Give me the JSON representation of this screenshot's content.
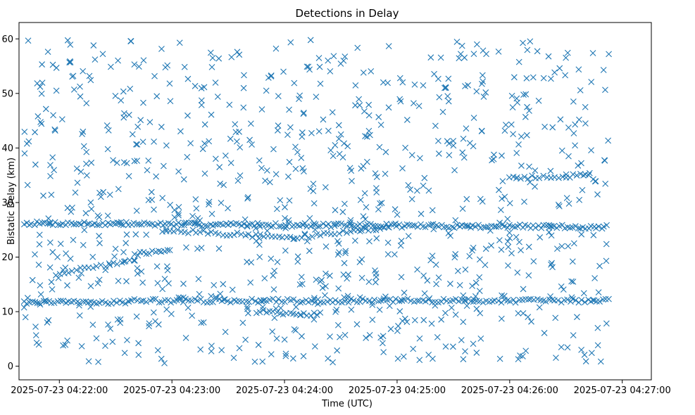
{
  "chart_data": {
    "type": "scatter",
    "title": "Detections in Delay",
    "xlabel": "Time (UTC)",
    "ylabel": "Bistatic Delay (km)",
    "marker": "x",
    "color": "#1f77b4",
    "grid": false,
    "x_ticks": [
      {
        "t": 0,
        "label": "2025-07-23 04:22:00"
      },
      {
        "t": 60,
        "label": "2025-07-23 04:23:00"
      },
      {
        "t": 120,
        "label": "2025-07-23 04:24:00"
      },
      {
        "t": 180,
        "label": "2025-07-23 04:25:00"
      },
      {
        "t": 240,
        "label": "2025-07-23 04:26:00"
      },
      {
        "t": 300,
        "label": "2025-07-23 04:27:00"
      }
    ],
    "y_ticks": [
      0,
      10,
      20,
      30,
      40,
      50,
      60
    ],
    "xlim": [
      -21.5,
      315.5
    ],
    "ylim": [
      -2.5,
      63
    ],
    "tracks": [
      {
        "t_start": -19,
        "t_end": 293,
        "y_start": 26.2,
        "y_end": 25.5,
        "step": 1.4
      },
      {
        "t_start": -19,
        "t_end": 37,
        "y_start": 11.6,
        "y_end": 11.8,
        "step": 1.5
      },
      {
        "t_start": 37,
        "t_end": 293,
        "y_start": 12.0,
        "y_end": 12.0,
        "step": 1.6
      },
      {
        "t_start": -2,
        "t_end": 40,
        "y_start": 17.0,
        "y_end": 19.5,
        "step": 2.2
      },
      {
        "t_start": 40,
        "t_end": 60,
        "y_start": 20.5,
        "y_end": 21.5,
        "step": 1.6
      },
      {
        "t_start": 55,
        "t_end": 125,
        "y_start": 25.0,
        "y_end": 23.5,
        "step": 2.0
      },
      {
        "t_start": 125,
        "t_end": 175,
        "y_start": 23.5,
        "y_end": 25.5,
        "step": 2.0
      },
      {
        "t_start": 105,
        "t_end": 140,
        "y_start": 10.0,
        "y_end": 9.5,
        "step": 1.8
      },
      {
        "t_start": 240,
        "t_end": 282,
        "y_start": 34.5,
        "y_end": 35.0,
        "step": 2.0
      }
    ],
    "noise": {
      "count": 900,
      "t_min": -19,
      "t_max": 293,
      "y_min": 0.5,
      "y_max": 59.8,
      "seed": 7
    }
  }
}
